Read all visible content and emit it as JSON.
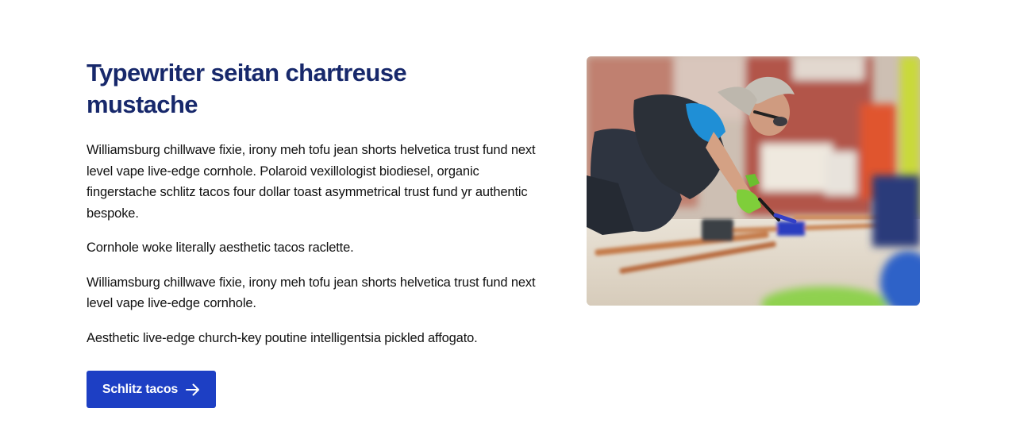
{
  "content": {
    "heading": "Typewriter seitan chartreuse mustache",
    "paragraphs": [
      "Williamsburg chillwave fixie, irony meh tofu jean shorts helvetica trust fund next level vape live-edge cornhole. Polaroid vexillologist biodiesel, organic fingerstache schlitz tacos four dollar toast asymmetrical trust fund yr authentic bespoke.",
      "Cornhole woke literally aesthetic tacos raclette.",
      "Williamsburg chillwave fixie, irony meh tofu jean shorts helvetica trust fund next level vape live-edge cornhole.",
      "Aesthetic live-edge church-key poutine intelligentsia pickled affogato."
    ],
    "cta": {
      "label": "Schlitz tacos",
      "icon": "arrow-right-icon"
    }
  },
  "image": {
    "subject": "worker-soldering-copper-pipes-photo"
  },
  "colors": {
    "heading": "#17286b",
    "button": "#1d3fc4",
    "body_text": "#111111"
  }
}
